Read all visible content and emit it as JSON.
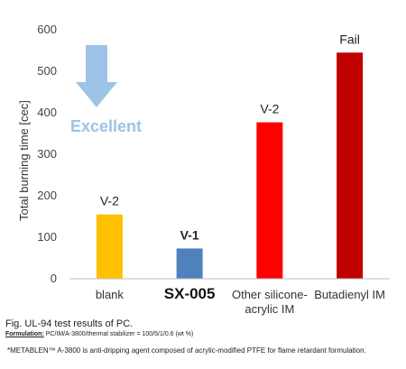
{
  "chart_data": {
    "type": "bar",
    "categories": [
      "blank",
      "SX-005",
      "Other silicone-acrylic IM",
      "Butadienyl IM"
    ],
    "category_lines": [
      [
        "blank"
      ],
      [
        "SX-005"
      ],
      [
        "Other silicone-",
        "acrylic IM"
      ],
      [
        "Butadienyl IM"
      ]
    ],
    "values": [
      155,
      73,
      377,
      545
    ],
    "data_labels": [
      "V-2",
      "V-1",
      "V-2",
      "Fail"
    ],
    "bar_colors": [
      "#FFC000",
      "#4F81BD",
      "#FF0000",
      "#C00000"
    ],
    "data_label_colors": [
      "#222222",
      "#1F3D99",
      "#222222",
      "#222222"
    ],
    "emphasized_category": "SX-005",
    "ylabel": "Total burning time [cec]",
    "yticks": [
      0,
      100,
      200,
      300,
      400,
      500,
      600
    ],
    "ylim": [
      0,
      600
    ],
    "grid": false,
    "annotation": {
      "text": "Excellent",
      "color": "#9DC3E6",
      "arrow": "down"
    }
  },
  "caption": {
    "figure": "Fig. UL-94 test results of PC.",
    "formulation_key": "Formulation:",
    "formulation_value": " PC/IM/A-3800/thermal stabilizer = 100/5/1/0.6 (wt %)",
    "footnote": "*METABLEN™ A-3800 is anti-dripping agent composed of acrylic-modified PTFE for flame retardant formulation."
  }
}
